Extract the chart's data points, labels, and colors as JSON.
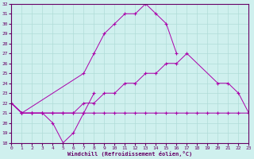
{
  "xlabel": "Windchill (Refroidissement éolien,°C)",
  "background_color": "#cff0ee",
  "grid_color": "#b0dcd8",
  "line_color": "#aa00aa",
  "ylim": [
    18,
    32
  ],
  "xlim": [
    0,
    23
  ],
  "yticks": [
    18,
    19,
    20,
    21,
    22,
    23,
    24,
    25,
    26,
    27,
    28,
    29,
    30,
    31,
    32
  ],
  "xticks": [
    0,
    1,
    2,
    3,
    4,
    5,
    6,
    7,
    8,
    9,
    10,
    11,
    12,
    13,
    14,
    15,
    16,
    17,
    18,
    19,
    20,
    21,
    22,
    23
  ],
  "line_peak_x": [
    0,
    1,
    7,
    8,
    9,
    10,
    11,
    12,
    13,
    14,
    15,
    16
  ],
  "line_peak_y": [
    22,
    21,
    25,
    27,
    29,
    30,
    31,
    31,
    32,
    31,
    30,
    27
  ],
  "line_dip_x": [
    0,
    1,
    2,
    3,
    4,
    5,
    6,
    7,
    8
  ],
  "line_dip_y": [
    22,
    21,
    21,
    21,
    20,
    18,
    19,
    21,
    23
  ],
  "line_rise_x": [
    0,
    1,
    2,
    3,
    4,
    5,
    6,
    7,
    8,
    9,
    10,
    11,
    12,
    13,
    14,
    15,
    16,
    17,
    20,
    21,
    22,
    23
  ],
  "line_rise_y": [
    22,
    21,
    21,
    21,
    21,
    21,
    21,
    22,
    22,
    23,
    23,
    24,
    24,
    25,
    25,
    26,
    26,
    27,
    24,
    24,
    23,
    21
  ],
  "line_flat_x": [
    0,
    1,
    2,
    3,
    4,
    5,
    6,
    7,
    8,
    9,
    10,
    11,
    12,
    13,
    14,
    15,
    16,
    17,
    18,
    19,
    20,
    21,
    22,
    23
  ],
  "line_flat_y": [
    22,
    21,
    21,
    21,
    21,
    21,
    21,
    21,
    21,
    21,
    21,
    21,
    21,
    21,
    21,
    21,
    21,
    21,
    21,
    21,
    21,
    21,
    21,
    21
  ]
}
